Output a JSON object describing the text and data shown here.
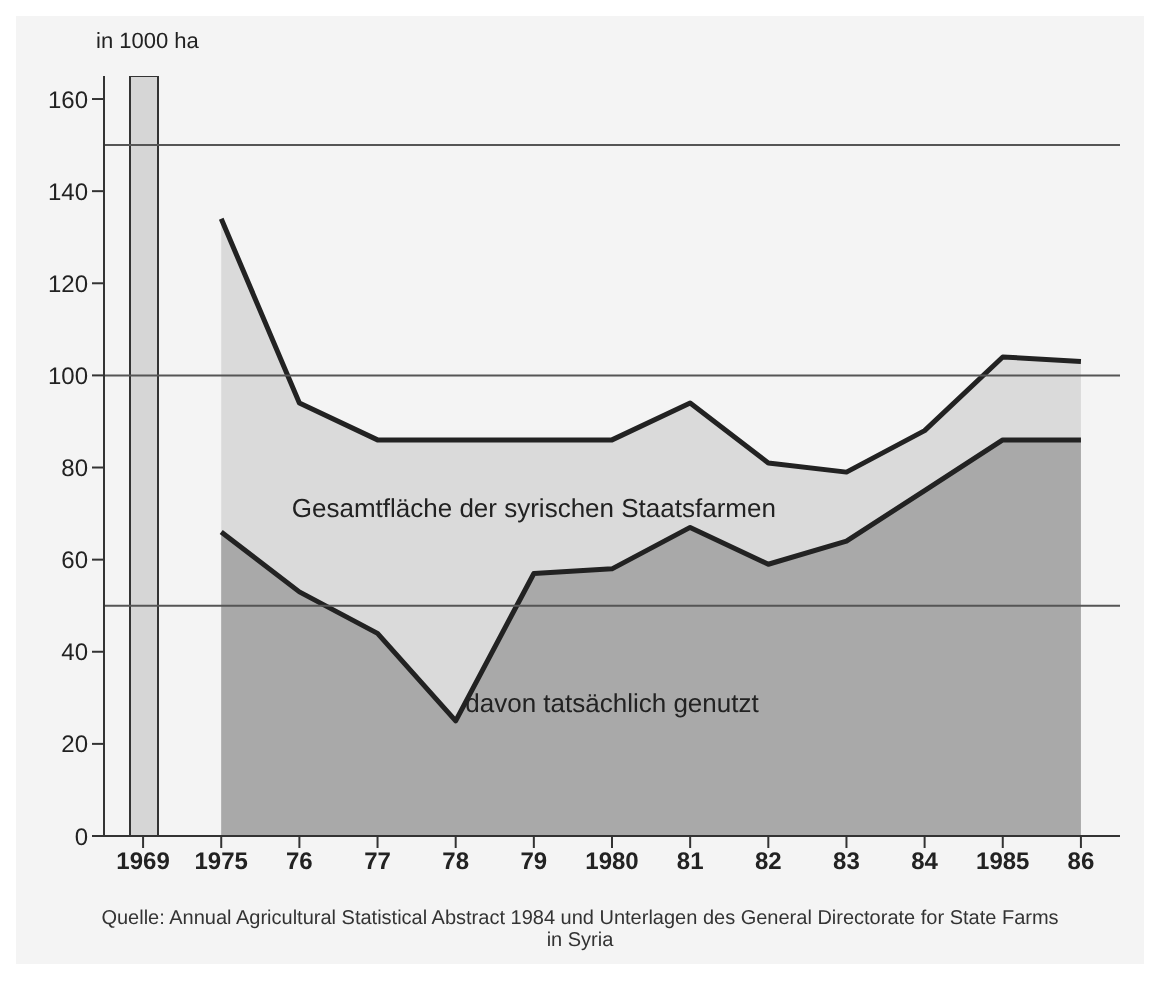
{
  "chart_data": {
    "type": "area",
    "ylabel": "in 1000 ha",
    "categories": [
      "1969",
      "1975",
      "76",
      "77",
      "78",
      "79",
      "1980",
      "81",
      "82",
      "83",
      "84",
      "1985",
      "86"
    ],
    "series": [
      {
        "type": "bar",
        "color": "#d6d6d6",
        "values": [
          165,
          null,
          null,
          null,
          null,
          null,
          null,
          null,
          null,
          null,
          null,
          null,
          null
        ]
      },
      {
        "name": "Gesamtfläche der syrischen Staatsfarmen",
        "color": "#dadada",
        "values": [
          null,
          134,
          94,
          86,
          86,
          86,
          86,
          94,
          81,
          79,
          88,
          104,
          103
        ]
      },
      {
        "name": "davon tatsächlich genutzt",
        "color": "#a9a9a9",
        "values": [
          null,
          66,
          53,
          44,
          25,
          57,
          58,
          67,
          59,
          64,
          75,
          86,
          86
        ]
      }
    ],
    "ylim": [
      0,
      165
    ],
    "yticks": [
      0,
      20,
      40,
      60,
      80,
      100,
      120,
      140,
      160
    ],
    "ref_lines": [
      {
        "axis": "y",
        "value": 50,
        "color": "#555555"
      },
      {
        "axis": "y",
        "value": 100,
        "color": "#555555"
      },
      {
        "axis": "y",
        "value": 150,
        "color": "#555555"
      }
    ],
    "legend": false,
    "annotations": [
      "Quelle: Annual Agricultural Statistical Abstract 1984 und Unterlagen des General Directorate for State Farms in Syria"
    ]
  }
}
